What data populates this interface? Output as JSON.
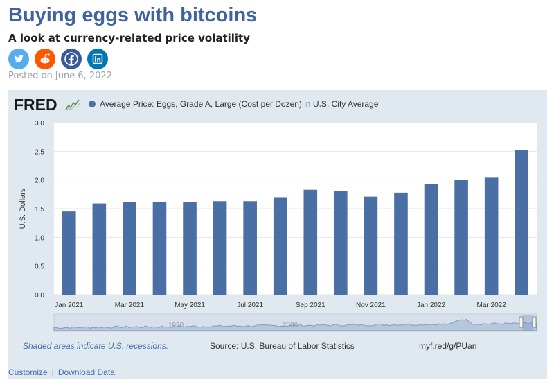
{
  "page": {
    "title": "Buying eggs with bitcoins",
    "subtitle": "A look at currency-related price volatility",
    "posted": "Posted on June 6, 2022"
  },
  "share": [
    {
      "icon": "twitter-icon",
      "color": "#55acee"
    },
    {
      "icon": "reddit-icon",
      "color": "#ff5700"
    },
    {
      "icon": "facebook-icon",
      "color": "#3b5998"
    },
    {
      "icon": "linkedin-icon",
      "color": "#0077b5"
    }
  ],
  "fred": {
    "logo_text": "FRED",
    "legend": "Average Price: Eggs, Grade A, Large (Cost per Dozen) in U.S. City Average",
    "recession_note": "Shaded areas indicate U.S. recessions.",
    "source": "Source: U.S. Bureau of Labor Statistics",
    "shortlink": "myf.red/g/PUan",
    "navigator_labels": [
      "1990",
      "2000"
    ]
  },
  "footer": {
    "customize": "Customize",
    "separator": "|",
    "download": "Download Data"
  },
  "chart_data": {
    "type": "bar",
    "categories": [
      "Jan 2021",
      "Feb 2021",
      "Mar 2021",
      "Apr 2021",
      "May 2021",
      "Jun 2021",
      "Jul 2021",
      "Aug 2021",
      "Sep 2021",
      "Oct 2021",
      "Nov 2021",
      "Dec 2021",
      "Jan 2022",
      "Feb 2022",
      "Mar 2022",
      "Apr 2022"
    ],
    "x_tick_labels": [
      "Jan 2021",
      "Mar 2021",
      "May 2021",
      "Jul 2021",
      "Sep 2021",
      "Nov 2021",
      "Jan 2022",
      "Mar 2022"
    ],
    "series": [
      {
        "values": [
          1.45,
          1.59,
          1.62,
          1.61,
          1.62,
          1.63,
          1.63,
          1.7,
          1.83,
          1.81,
          1.71,
          1.78,
          1.93,
          2.0,
          2.04,
          2.52
        ]
      }
    ],
    "ylabel": "U.S. Dollars",
    "ylim": [
      0,
      3.0
    ],
    "yticks": [
      "0.0",
      "0.5",
      "1.0",
      "1.5",
      "2.0",
      "2.5",
      "3.0"
    ],
    "grid": true,
    "bar_color": "#4a6fa5"
  }
}
